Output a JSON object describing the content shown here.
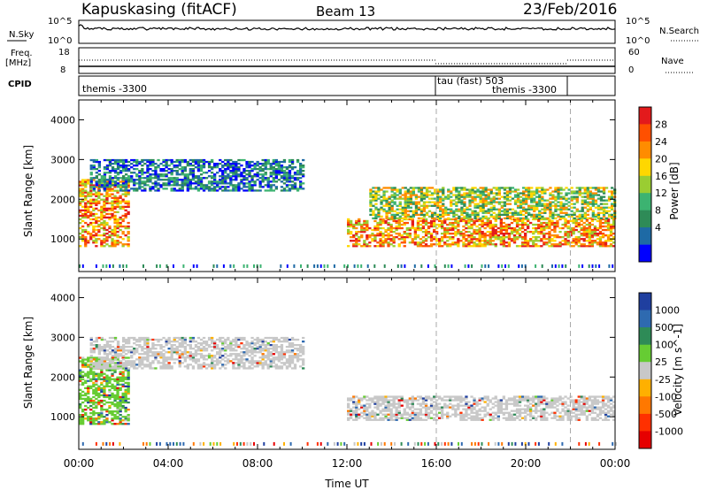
{
  "header": {
    "station": "Kapuskasing (fitACF)",
    "beam": "Beam 13",
    "date": "23/Feb/2016"
  },
  "noise_panel": {
    "left_label": "N.Sky",
    "right_label": "N.Search",
    "left_ticks": [
      "10^5",
      "10^0"
    ],
    "right_ticks": [
      "10^5",
      "10^0"
    ]
  },
  "freq_panel": {
    "left_label_1": "Freq.",
    "left_label_2": "[MHz]",
    "right_label": "Nave",
    "left_ticks": [
      "18",
      "8"
    ],
    "right_ticks": [
      "60",
      "0"
    ]
  },
  "cpid_panel": {
    "label": "CPID",
    "segments": [
      "themis -3300",
      "tau (fast) 503",
      "themis -3300"
    ]
  },
  "chart_data": [
    {
      "type": "heatmap",
      "name": "power",
      "xlabel": "Time UT",
      "ylabel": "Slant Range [km]",
      "ylim": [
        180,
        4500
      ],
      "yticks": [
        1000,
        2000,
        3000,
        4000
      ],
      "xlim_hours": [
        0,
        24
      ],
      "xticks": [
        "00:00",
        "04:00",
        "08:00",
        "12:00",
        "16:00",
        "20:00",
        "00:00"
      ],
      "colorbar_label": "Power [dB]",
      "colorbar_ticks": [
        "28",
        "24",
        "20",
        "16",
        "12",
        "8",
        "4"
      ],
      "colorbar_colors": [
        "#e31a1c",
        "#ff5000",
        "#ff8c00",
        "#ffd700",
        "#9acd32",
        "#3cb371",
        "#2e8b57",
        "#1e6aa5",
        "#0000ff"
      ],
      "mode_change_times_hours": [
        16,
        22
      ],
      "echo_regions": [
        {
          "t0": 0.0,
          "t1": 2.2,
          "r0": 800,
          "r1": 2500,
          "level": "high"
        },
        {
          "t0": 0.5,
          "t1": 10.0,
          "r0": 2200,
          "r1": 3000,
          "level": "low"
        },
        {
          "t0": 12.0,
          "t1": 24.0,
          "r0": 800,
          "r1": 1500,
          "level": "high"
        },
        {
          "t0": 13.0,
          "t1": 24.0,
          "r0": 1500,
          "r1": 2300,
          "level": "mid"
        }
      ]
    },
    {
      "type": "heatmap",
      "name": "velocity",
      "xlabel": "Time UT",
      "ylabel": "Slant Range [km]",
      "ylim": [
        180,
        4500
      ],
      "yticks": [
        1000,
        2000,
        3000,
        4000
      ],
      "xlim_hours": [
        0,
        24
      ],
      "xticks": [
        "00:00",
        "04:00",
        "08:00",
        "12:00",
        "16:00",
        "20:00",
        "00:00"
      ],
      "colorbar_label": "Velocity [m s^-1]",
      "colorbar_ticks": [
        "1000",
        "500",
        "100",
        "25",
        "-25",
        "-100",
        "-500",
        "-1000"
      ],
      "colorbar_colors": [
        "#1f3f9f",
        "#2e6ab0",
        "#2e8b57",
        "#66cc33",
        "#c8c8c8",
        "#ffb000",
        "#ff7800",
        "#ff3000",
        "#e60000"
      ],
      "mode_change_times_hours": [
        16,
        22
      ],
      "echo_regions": [
        {
          "t0": 0.0,
          "t1": 2.2,
          "r0": 800,
          "r1": 2500,
          "level": "green"
        },
        {
          "t0": 0.5,
          "t1": 10.0,
          "r0": 2200,
          "r1": 3000,
          "level": "gray"
        },
        {
          "t0": 12.0,
          "t1": 24.0,
          "r0": 900,
          "r1": 1500,
          "level": "gray"
        }
      ]
    }
  ]
}
